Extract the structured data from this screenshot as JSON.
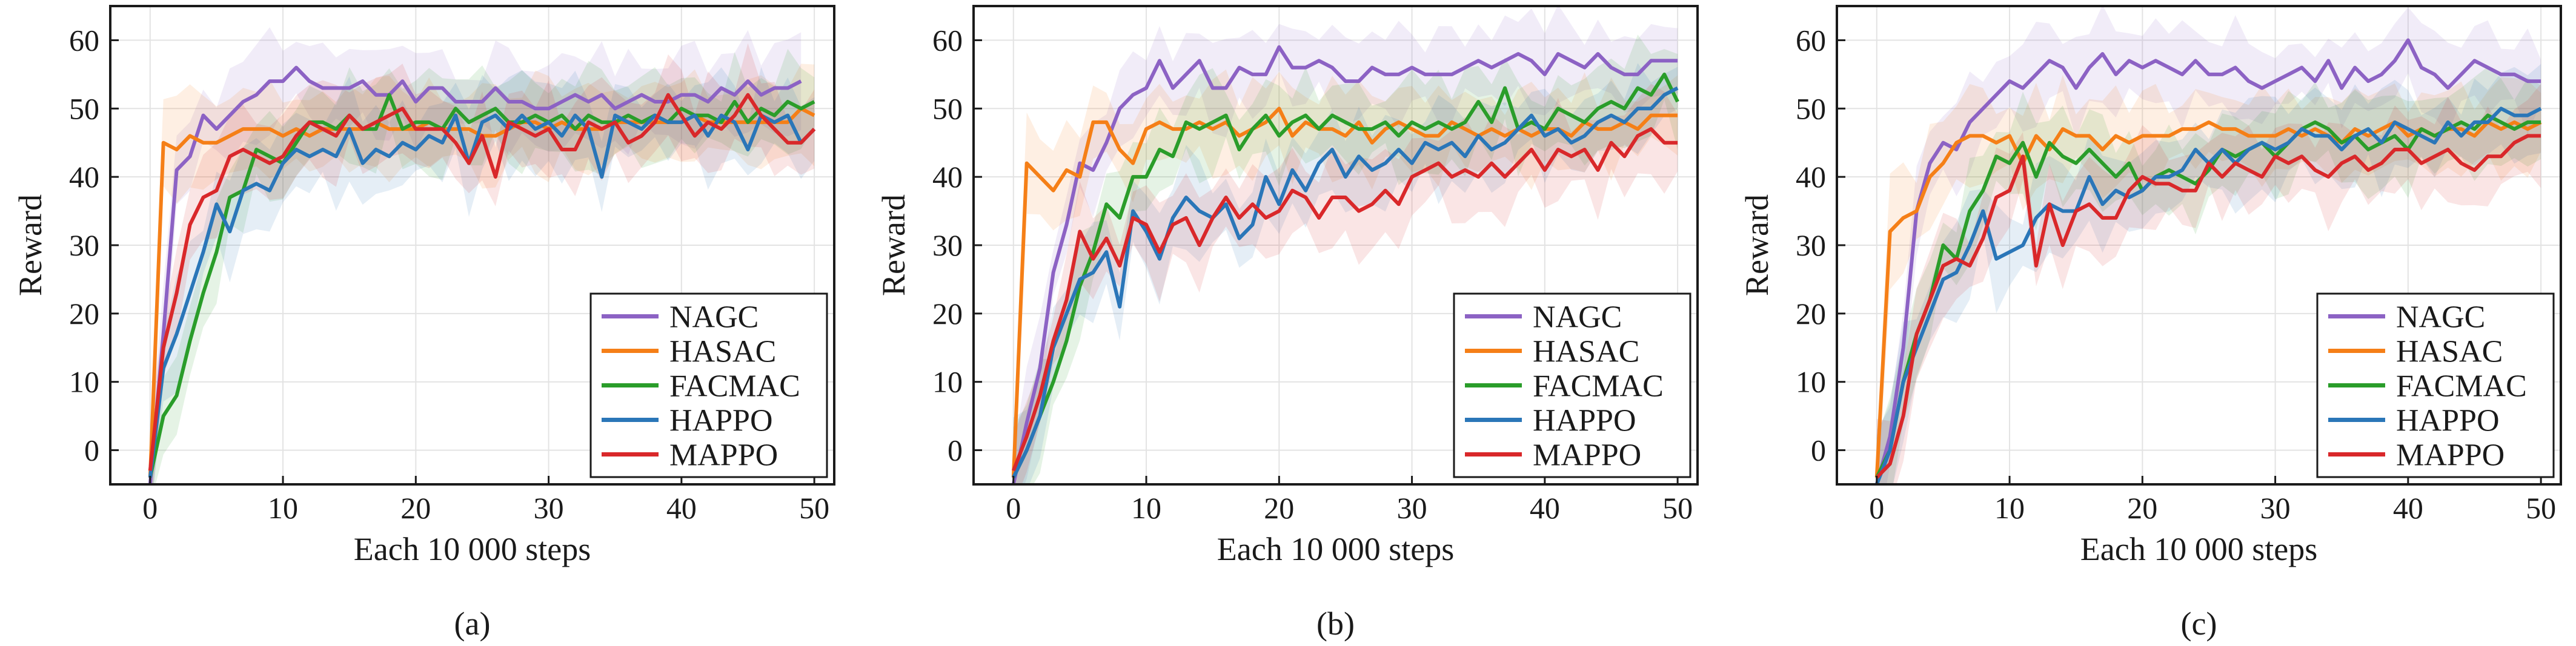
{
  "series_style": [
    {
      "name": "NAGC",
      "color": "#8c62c4"
    },
    {
      "name": "HASAC",
      "color": "#f57f17"
    },
    {
      "name": "FACMAC",
      "color": "#2a9d2a"
    },
    {
      "name": "HAPPO",
      "color": "#2a76b8"
    },
    {
      "name": "MAPPO",
      "color": "#d9282a"
    }
  ],
  "chart_data": [
    {
      "type": "line",
      "caption": "(a)",
      "xlabel": "Each 10 000 steps",
      "ylabel": "Reward",
      "xlim": [
        -3,
        51.5
      ],
      "ylim": [
        -5,
        65
      ],
      "xticks": [
        0,
        10,
        20,
        30,
        40,
        50
      ],
      "yticks": [
        0,
        10,
        20,
        30,
        40,
        50,
        60
      ],
      "grid": true,
      "legend_position": "bottom-right",
      "series": [
        {
          "name": "NAGC",
          "values": [
            -5,
            17,
            41,
            43,
            49,
            47,
            49,
            51,
            52,
            54,
            54,
            56,
            54,
            53,
            53,
            53,
            54,
            52,
            52,
            54,
            51,
            53,
            53,
            51,
            51,
            51,
            53,
            51,
            51,
            50,
            50,
            51,
            52,
            51,
            52,
            50,
            51,
            52,
            51,
            51,
            52,
            52,
            51,
            53,
            52,
            54,
            52,
            53,
            53,
            54
          ]
        },
        {
          "name": "HASAC",
          "values": [
            -4,
            45,
            44,
            46,
            45,
            45,
            46,
            47,
            47,
            47,
            46,
            47,
            46,
            47,
            47,
            47,
            47,
            48,
            47,
            47,
            47,
            48,
            47,
            47,
            47,
            46,
            46,
            47,
            48,
            48,
            47,
            48,
            47,
            47,
            47,
            48,
            48,
            48,
            48,
            48,
            48,
            49,
            48,
            48,
            48,
            48,
            48,
            48,
            48,
            50,
            49
          ]
        },
        {
          "name": "FACMAC",
          "values": [
            -4,
            5,
            8,
            16,
            23,
            29,
            37,
            38,
            44,
            43,
            42,
            45,
            48,
            48,
            47,
            49,
            47,
            47,
            52,
            47,
            48,
            48,
            47,
            50,
            48,
            49,
            50,
            48,
            48,
            49,
            48,
            49,
            47,
            49,
            48,
            48,
            49,
            48,
            49,
            48,
            50,
            49,
            49,
            48,
            51,
            48,
            50,
            49,
            51,
            50,
            51
          ]
        },
        {
          "name": "HAPPO",
          "values": [
            -4,
            12,
            17,
            23,
            29,
            36,
            32,
            38,
            39,
            38,
            42,
            44,
            43,
            44,
            43,
            47,
            42,
            44,
            43,
            45,
            44,
            46,
            45,
            49,
            42,
            48,
            49,
            47,
            49,
            47,
            48,
            46,
            49,
            47,
            40,
            49,
            48,
            47,
            49,
            48,
            48,
            49,
            46,
            49,
            48,
            44,
            49,
            48,
            49,
            45,
            47
          ]
        },
        {
          "name": "MAPPO",
          "values": [
            -3,
            15,
            23,
            33,
            37,
            38,
            43,
            44,
            43,
            42,
            43,
            46,
            48,
            47,
            46,
            49,
            47,
            48,
            49,
            50,
            47,
            47,
            47,
            45,
            42,
            46,
            40,
            48,
            47,
            46,
            47,
            44,
            44,
            48,
            47,
            48,
            45,
            46,
            48,
            52,
            49,
            46,
            48,
            47,
            49,
            52,
            49,
            47,
            45,
            45,
            47
          ]
        }
      ]
    },
    {
      "type": "line",
      "caption": "(b)",
      "xlabel": "Each 10 000 steps",
      "ylabel": "Reward",
      "xlim": [
        -3,
        51.5
      ],
      "ylim": [
        -5,
        65
      ],
      "xticks": [
        0,
        10,
        20,
        30,
        40,
        50
      ],
      "yticks": [
        0,
        10,
        20,
        30,
        40,
        50,
        60
      ],
      "grid": true,
      "legend_position": "bottom-right",
      "series": [
        {
          "name": "NAGC",
          "values": [
            -5,
            4,
            12,
            26,
            33,
            42,
            41,
            45,
            50,
            52,
            53,
            57,
            53,
            55,
            57,
            53,
            53,
            56,
            55,
            55,
            59,
            56,
            56,
            57,
            56,
            54,
            54,
            56,
            55,
            55,
            56,
            55,
            55,
            55,
            56,
            57,
            56,
            57,
            58,
            57,
            55,
            58,
            57,
            56,
            58,
            56,
            55,
            55,
            57,
            57,
            57
          ]
        },
        {
          "name": "HASAC",
          "values": [
            -4,
            42,
            40,
            38,
            41,
            40,
            48,
            48,
            44,
            42,
            47,
            48,
            47,
            47,
            48,
            47,
            48,
            46,
            47,
            48,
            50,
            46,
            48,
            47,
            47,
            46,
            48,
            45,
            47,
            48,
            47,
            46,
            46,
            48,
            47,
            46,
            47,
            46,
            47,
            46,
            47,
            47,
            46,
            48,
            47,
            47,
            48,
            47,
            49,
            49,
            49
          ]
        },
        {
          "name": "FACMAC",
          "values": [
            -4,
            0,
            5,
            10,
            16,
            24,
            29,
            36,
            34,
            40,
            40,
            44,
            43,
            48,
            47,
            48,
            49,
            44,
            47,
            49,
            46,
            48,
            49,
            47,
            49,
            48,
            47,
            47,
            48,
            46,
            48,
            47,
            48,
            47,
            48,
            51,
            48,
            53,
            47,
            48,
            47,
            50,
            49,
            48,
            50,
            51,
            50,
            53,
            52,
            55,
            51
          ]
        },
        {
          "name": "HAPPO",
          "values": [
            -4,
            0,
            5,
            15,
            20,
            25,
            26,
            29,
            21,
            35,
            32,
            28,
            34,
            37,
            35,
            34,
            36,
            31,
            33,
            40,
            36,
            41,
            38,
            42,
            44,
            40,
            43,
            41,
            42,
            44,
            42,
            45,
            44,
            45,
            43,
            46,
            44,
            45,
            47,
            49,
            46,
            47,
            45,
            46,
            48,
            49,
            48,
            50,
            50,
            52,
            53
          ]
        },
        {
          "name": "MAPPO",
          "values": [
            -3,
            2,
            8,
            16,
            22,
            32,
            28,
            31,
            27,
            34,
            33,
            29,
            33,
            34,
            30,
            34,
            37,
            34,
            36,
            34,
            35,
            38,
            37,
            34,
            37,
            37,
            35,
            36,
            38,
            36,
            40,
            41,
            42,
            40,
            41,
            40,
            42,
            40,
            42,
            44,
            41,
            44,
            43,
            44,
            41,
            45,
            43,
            46,
            47,
            45,
            45
          ]
        }
      ]
    },
    {
      "type": "line",
      "caption": "(c)",
      "xlabel": "Each 10 000 steps",
      "ylabel": "Reward",
      "xlim": [
        -3,
        51.5
      ],
      "ylim": [
        -5,
        65
      ],
      "xticks": [
        0,
        10,
        20,
        30,
        40,
        50
      ],
      "yticks": [
        0,
        10,
        20,
        30,
        40,
        50,
        60
      ],
      "grid": true,
      "legend_position": "bottom-right",
      "series": [
        {
          "name": "NAGC",
          "values": [
            -5,
            2,
            15,
            35,
            42,
            45,
            44,
            48,
            50,
            52,
            54,
            53,
            55,
            57,
            56,
            53,
            56,
            58,
            55,
            57,
            56,
            57,
            56,
            55,
            57,
            55,
            55,
            56,
            54,
            53,
            54,
            55,
            56,
            54,
            57,
            53,
            56,
            54,
            55,
            57,
            60,
            56,
            55,
            53,
            55,
            57,
            56,
            55,
            55,
            54,
            54
          ]
        },
        {
          "name": "HASAC",
          "values": [
            -4,
            32,
            34,
            35,
            40,
            42,
            45,
            46,
            46,
            45,
            46,
            42,
            46,
            44,
            47,
            46,
            46,
            44,
            46,
            45,
            46,
            46,
            46,
            47,
            47,
            48,
            47,
            47,
            46,
            46,
            46,
            47,
            46,
            47,
            46,
            45,
            47,
            46,
            47,
            48,
            46,
            47,
            46,
            47,
            47,
            46,
            48,
            47,
            48,
            47,
            48
          ]
        },
        {
          "name": "FACMAC",
          "values": [
            -4,
            0,
            10,
            17,
            22,
            30,
            28,
            35,
            38,
            43,
            42,
            45,
            40,
            45,
            43,
            42,
            44,
            42,
            40,
            42,
            38,
            40,
            41,
            40,
            39,
            41,
            44,
            43,
            44,
            45,
            43,
            45,
            47,
            48,
            47,
            45,
            46,
            44,
            45,
            46,
            44,
            47,
            46,
            47,
            48,
            47,
            49,
            48,
            47,
            48,
            48
          ]
        },
        {
          "name": "HAPPO",
          "values": [
            -5,
            0,
            10,
            15,
            20,
            25,
            26,
            30,
            35,
            28,
            29,
            30,
            34,
            36,
            35,
            35,
            40,
            36,
            38,
            37,
            38,
            40,
            40,
            41,
            44,
            42,
            44,
            42,
            44,
            45,
            44,
            45,
            47,
            46,
            46,
            44,
            46,
            47,
            45,
            48,
            47,
            46,
            45,
            48,
            46,
            48,
            48,
            50,
            49,
            49,
            50
          ]
        },
        {
          "name": "MAPPO",
          "values": [
            -4,
            -2,
            5,
            17,
            22,
            27,
            28,
            27,
            31,
            37,
            38,
            43,
            27,
            36,
            30,
            35,
            36,
            34,
            34,
            38,
            40,
            39,
            39,
            38,
            38,
            42,
            40,
            42,
            41,
            40,
            43,
            42,
            43,
            41,
            40,
            42,
            43,
            41,
            42,
            44,
            44,
            42,
            43,
            44,
            42,
            41,
            43,
            43,
            45,
            46,
            46
          ]
        }
      ]
    }
  ]
}
